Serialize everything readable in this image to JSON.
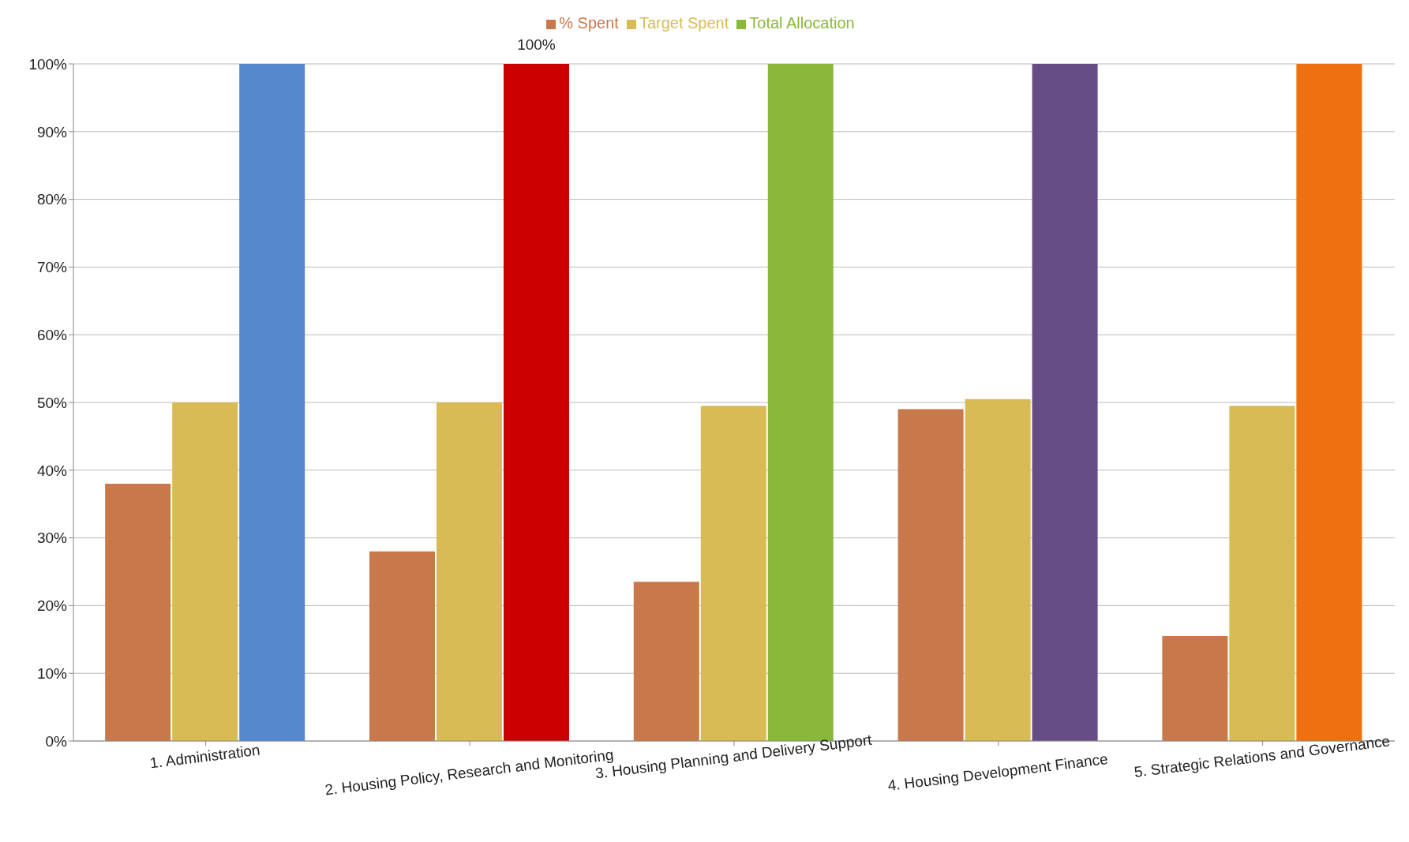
{
  "chart_data": {
    "type": "bar",
    "categories": [
      "1. Administration",
      "2. Housing Policy, Research and Monitoring",
      "3. Housing Planning and Delivery Support",
      "4. Housing Development Finance",
      "5. Strategic Relations and Governance"
    ],
    "series": [
      {
        "name": "% Spent",
        "color": "#c8784a",
        "values": [
          38,
          28,
          23.5,
          49,
          15.5
        ]
      },
      {
        "name": "Target Spent",
        "color": "#d9bb55",
        "values": [
          50,
          50,
          49.5,
          50.5,
          49.5
        ]
      },
      {
        "name": "Total Allocation",
        "color": "#8ab83a",
        "colors": [
          "#5588cc",
          "#cc0000",
          "#8ab83a",
          "#664c84",
          "#ee7010"
        ],
        "values": [
          100,
          100,
          100,
          100,
          100
        ],
        "value_labels": [
          null,
          "100%",
          null,
          null,
          null
        ]
      }
    ],
    "ylim": [
      0,
      100
    ],
    "yticks": [
      {
        "value": 0,
        "label": "0%"
      },
      {
        "value": 10,
        "label": "10%"
      },
      {
        "value": 20,
        "label": "20%"
      },
      {
        "value": 30,
        "label": "30%"
      },
      {
        "value": 40,
        "label": "40%"
      },
      {
        "value": 50,
        "label": "50%"
      },
      {
        "value": 60,
        "label": "60%"
      },
      {
        "value": 70,
        "label": "70%"
      },
      {
        "value": 80,
        "label": "80%"
      },
      {
        "value": 90,
        "label": "90%"
      },
      {
        "value": 100,
        "label": "100%"
      }
    ],
    "grid": "y",
    "legend": "top"
  }
}
